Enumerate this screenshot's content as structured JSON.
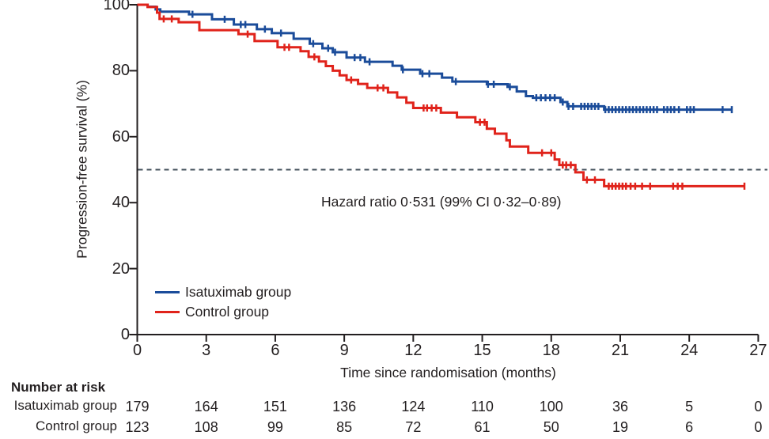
{
  "chart_data": {
    "type": "line",
    "subtype": "kaplan-meier-step",
    "title": "",
    "xlabel": "Time since randomisation (months)",
    "ylabel": "Progression-free survival (%)",
    "xlim": [
      0,
      27
    ],
    "ylim": [
      0,
      100
    ],
    "xticks": [
      0,
      3,
      6,
      9,
      12,
      15,
      18,
      21,
      24,
      27
    ],
    "yticks": [
      100,
      80,
      60,
      40,
      20,
      0
    ],
    "grid": false,
    "legend_position": "lower-left-inside",
    "annotation": "Hazard ratio 0·531 (99% CI 0·32–0·89)",
    "reference_line": {
      "y": 50,
      "style": "dashed",
      "color": "#44525c"
    },
    "axis_color": "#231f20",
    "series": [
      {
        "name": "Isatuximab group",
        "color": "#1b4c9a",
        "steps": [
          [
            0,
            100
          ],
          [
            0.45,
            99.4
          ],
          [
            0.8,
            98.6
          ],
          [
            1.0,
            97.9
          ],
          [
            2.25,
            97.1
          ],
          [
            3.25,
            95.6
          ],
          [
            4.2,
            94.0
          ],
          [
            5.2,
            92.6
          ],
          [
            5.85,
            91.4
          ],
          [
            6.8,
            89.7
          ],
          [
            7.5,
            88.2
          ],
          [
            8.05,
            86.8
          ],
          [
            8.5,
            85.6
          ],
          [
            9.1,
            84.0
          ],
          [
            9.9,
            82.7
          ],
          [
            11.1,
            81.5
          ],
          [
            11.5,
            80.3
          ],
          [
            12.3,
            79.1
          ],
          [
            13.25,
            77.9
          ],
          [
            13.7,
            76.7
          ],
          [
            15.2,
            75.9
          ],
          [
            16.1,
            75.1
          ],
          [
            16.5,
            73.7
          ],
          [
            16.9,
            72.3
          ],
          [
            17.2,
            71.8
          ],
          [
            18.4,
            70.5
          ],
          [
            18.7,
            69.2
          ],
          [
            20.3,
            68.2
          ],
          [
            25.85,
            68.2
          ]
        ],
        "censor_months": [
          2.4,
          3.8,
          4.5,
          4.7,
          5.55,
          6.25,
          7.65,
          8.3,
          8.6,
          9.45,
          9.7,
          10.1,
          11.55,
          12.4,
          12.7,
          13.85,
          15.25,
          15.5,
          16.2,
          17.35,
          17.55,
          17.75,
          17.95,
          18.15,
          18.5,
          18.75,
          18.95,
          19.3,
          19.45,
          19.6,
          19.75,
          19.9,
          20.05,
          20.35,
          20.5,
          20.65,
          20.8,
          20.95,
          21.1,
          21.25,
          21.4,
          21.55,
          21.7,
          21.85,
          22.0,
          22.15,
          22.3,
          22.45,
          22.6,
          22.9,
          23.05,
          23.2,
          23.35,
          23.55,
          23.9,
          24.05,
          24.2,
          25.45,
          25.85
        ]
      },
      {
        "name": "Control group",
        "color": "#e0231b",
        "steps": [
          [
            0,
            100
          ],
          [
            0.45,
            99.3
          ],
          [
            0.86,
            97.6
          ],
          [
            0.97,
            95.7
          ],
          [
            1.8,
            94.7
          ],
          [
            2.7,
            92.3
          ],
          [
            4.4,
            91.1
          ],
          [
            5.1,
            89.0
          ],
          [
            6.1,
            87.1
          ],
          [
            7.1,
            85.9
          ],
          [
            7.45,
            84.2
          ],
          [
            7.9,
            82.8
          ],
          [
            8.2,
            81.4
          ],
          [
            8.5,
            80.0
          ],
          [
            8.8,
            78.6
          ],
          [
            9.1,
            77.2
          ],
          [
            9.6,
            76.0
          ],
          [
            10.0,
            74.8
          ],
          [
            10.9,
            73.4
          ],
          [
            11.3,
            71.9
          ],
          [
            11.7,
            70.3
          ],
          [
            12.0,
            68.7
          ],
          [
            13.2,
            67.3
          ],
          [
            13.9,
            65.9
          ],
          [
            14.7,
            64.4
          ],
          [
            15.2,
            62.4
          ],
          [
            15.55,
            60.9
          ],
          [
            16.05,
            58.9
          ],
          [
            16.2,
            57.0
          ],
          [
            17.0,
            55.1
          ],
          [
            18.15,
            53.1
          ],
          [
            18.35,
            51.4
          ],
          [
            19.05,
            49.2
          ],
          [
            19.4,
            46.9
          ],
          [
            20.3,
            45.0
          ],
          [
            26.4,
            45.0
          ]
        ],
        "censor_months": [
          1.15,
          1.5,
          4.8,
          6.4,
          6.6,
          7.7,
          9.3,
          10.45,
          10.7,
          12.45,
          12.6,
          12.8,
          13.0,
          14.9,
          15.1,
          17.6,
          18.0,
          18.5,
          18.65,
          18.85,
          19.55,
          19.9,
          20.5,
          20.65,
          20.8,
          20.95,
          21.1,
          21.25,
          21.45,
          21.65,
          21.95,
          22.3,
          23.3,
          23.5,
          23.7,
          26.4
        ]
      }
    ]
  },
  "number_at_risk": {
    "heading": "Number at risk",
    "timepoints": [
      0,
      3,
      6,
      9,
      12,
      15,
      18,
      21,
      24,
      27
    ],
    "rows": [
      {
        "label": "Isatuximab group",
        "values": [
          "179",
          "164",
          "151",
          "136",
          "124",
          "110",
          "100",
          "36",
          "5",
          "0"
        ]
      },
      {
        "label": "Control group",
        "values": [
          "123",
          "108",
          "99",
          "85",
          "72",
          "61",
          "50",
          "19",
          "6",
          "0"
        ]
      }
    ]
  }
}
